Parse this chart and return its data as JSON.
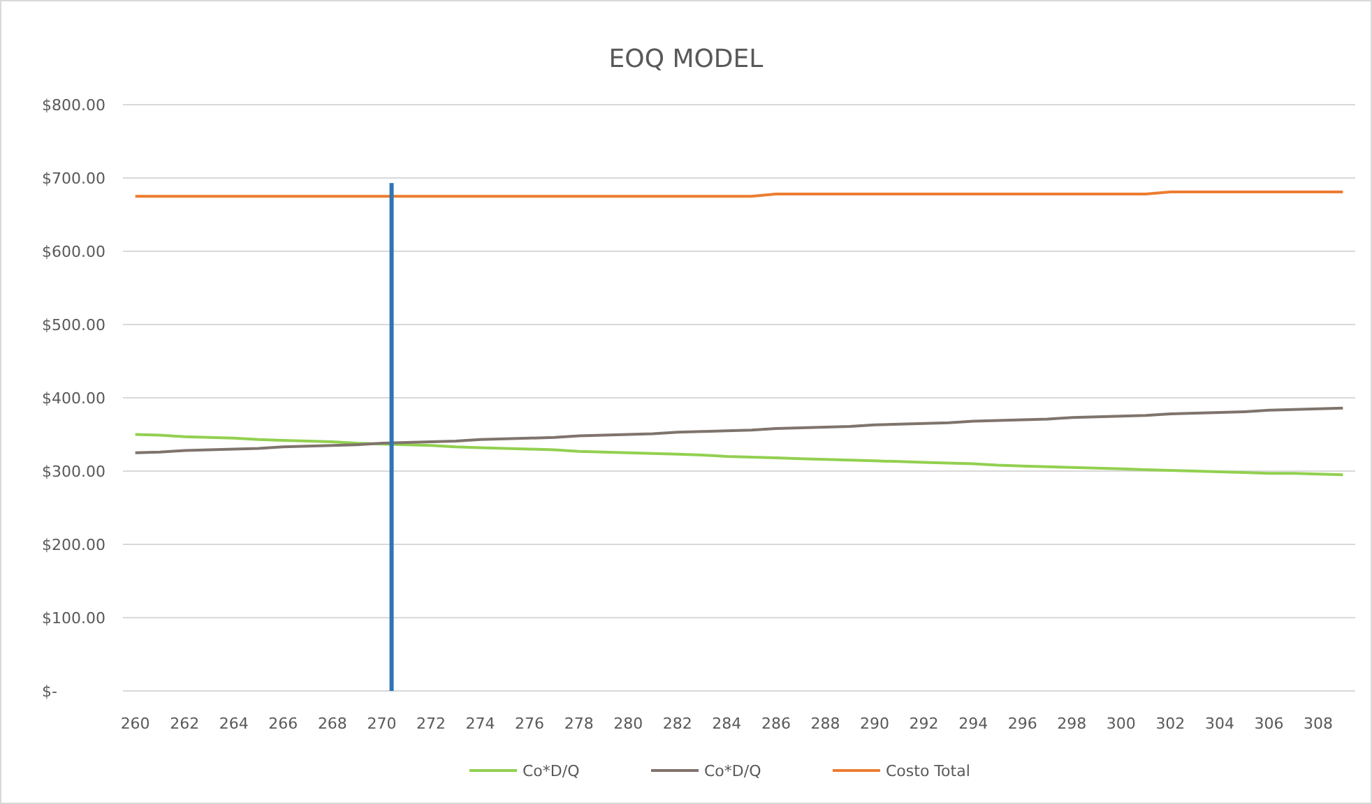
{
  "chart_data": {
    "type": "line",
    "title": "EOQ MODEL",
    "x": [
      260,
      261,
      262,
      263,
      264,
      265,
      266,
      267,
      268,
      269,
      270,
      271,
      272,
      273,
      274,
      275,
      276,
      277,
      278,
      279,
      280,
      281,
      282,
      283,
      284,
      285,
      286,
      287,
      288,
      289,
      290,
      291,
      292,
      293,
      294,
      295,
      296,
      297,
      298,
      299,
      300,
      301,
      302,
      303,
      304,
      305,
      306,
      307,
      308,
      309
    ],
    "xlim": [
      259.5,
      309.5
    ],
    "xticks": [
      260,
      262,
      264,
      266,
      268,
      270,
      272,
      274,
      276,
      278,
      280,
      282,
      284,
      286,
      288,
      290,
      292,
      294,
      296,
      298,
      300,
      302,
      304,
      306,
      308
    ],
    "ylim": [
      0,
      800
    ],
    "yticks": [
      {
        "value": 0,
        "label": "$-"
      },
      {
        "value": 100,
        "label": "$100.00"
      },
      {
        "value": 200,
        "label": "$200.00"
      },
      {
        "value": 300,
        "label": "$300.00"
      },
      {
        "value": 400,
        "label": "$400.00"
      },
      {
        "value": 500,
        "label": "$500.00"
      },
      {
        "value": 600,
        "label": "$600.00"
      },
      {
        "value": 700,
        "label": "$700.00"
      },
      {
        "value": 800,
        "label": "$800.00"
      }
    ],
    "grid": "y",
    "legend": "bottom",
    "line_style": "solid",
    "series": [
      {
        "name": "Co*D/Q",
        "color": "#92d050",
        "values": [
          350,
          349,
          347,
          346,
          345,
          343,
          342,
          341,
          340,
          338,
          337,
          336,
          335,
          333,
          332,
          331,
          330,
          329,
          327,
          326,
          325,
          324,
          323,
          322,
          320,
          319,
          318,
          317,
          316,
          315,
          314,
          313,
          312,
          311,
          310,
          308,
          307,
          306,
          305,
          304,
          303,
          302,
          301,
          300,
          299,
          298,
          297,
          297,
          296,
          295
        ]
      },
      {
        "name": "Co*D/Q",
        "color": "#7f746c",
        "values": [
          325,
          326,
          328,
          329,
          330,
          331,
          333,
          334,
          335,
          336,
          338,
          339,
          340,
          341,
          343,
          344,
          345,
          346,
          348,
          349,
          350,
          351,
          353,
          354,
          355,
          356,
          358,
          359,
          360,
          361,
          363,
          364,
          365,
          366,
          368,
          369,
          370,
          371,
          373,
          374,
          375,
          376,
          378,
          379,
          380,
          381,
          383,
          384,
          385,
          386
        ]
      },
      {
        "name": "Costo Total",
        "color": "#ed7d31",
        "values": [
          675,
          675,
          675,
          675,
          675,
          675,
          675,
          675,
          675,
          675,
          675,
          675,
          675,
          675,
          675,
          675,
          675,
          675,
          675,
          675,
          675,
          675,
          675,
          675,
          675,
          675,
          678,
          678,
          678,
          678,
          678,
          678,
          678,
          678,
          678,
          678,
          678,
          678,
          678,
          678,
          678,
          678,
          681,
          681,
          681,
          681,
          681,
          681,
          681,
          681
        ]
      },
      {
        "color": "#2e75b6",
        "x": [
          270.4,
          270.4
        ],
        "values": [
          0,
          693
        ]
      }
    ]
  }
}
